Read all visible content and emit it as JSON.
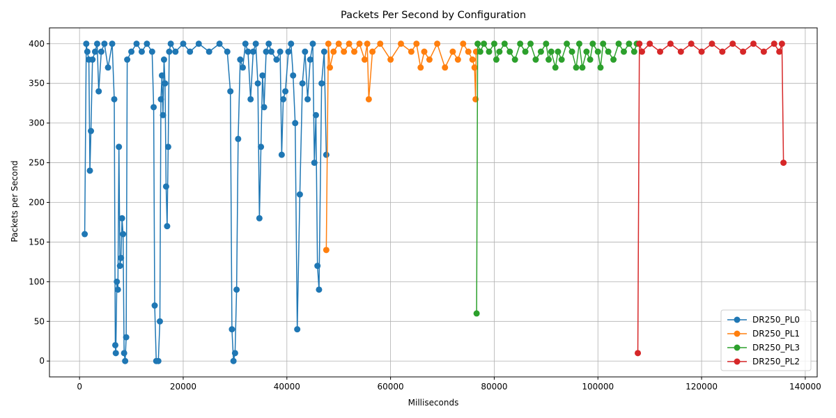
{
  "chart_data": {
    "type": "line",
    "title": "Packets Per Second by Configuration",
    "xlabel": "Milliseconds",
    "ylabel": "Packets per Second",
    "xlim": [
      -5800,
      142300
    ],
    "ylim": [
      -20,
      420
    ],
    "xticks": [
      0,
      20000,
      40000,
      60000,
      80000,
      100000,
      120000,
      140000
    ],
    "yticks": [
      0,
      50,
      100,
      150,
      200,
      250,
      300,
      350,
      400
    ],
    "grid": true,
    "legend_position": "bottom-right",
    "series": [
      {
        "name": "DR250_PL0",
        "color": "#1f77b4",
        "x": [
          1000,
          1300,
          1500,
          1800,
          2000,
          2200,
          2500,
          3000,
          3400,
          3700,
          4200,
          4800,
          5500,
          6300,
          6700,
          6900,
          7000,
          7200,
          7400,
          7600,
          7800,
          8000,
          8200,
          8400,
          8600,
          8800,
          9000,
          9200,
          10000,
          11000,
          12000,
          13000,
          14000,
          14300,
          14500,
          14800,
          15200,
          15500,
          15700,
          15900,
          16100,
          16300,
          16500,
          16700,
          16900,
          17100,
          17300,
          17600,
          18500,
          20000,
          21300,
          23000,
          25000,
          27000,
          28500,
          29100,
          29400,
          29700,
          30000,
          30300,
          30600,
          31000,
          31500,
          32000,
          32500,
          33000,
          33500,
          34000,
          34400,
          34700,
          35000,
          35300,
          35600,
          36000,
          36500,
          37000,
          38000,
          38700,
          39000,
          39300,
          39700,
          40300,
          40800,
          41200,
          41600,
          42000,
          42500,
          43000,
          43500,
          44000,
          44500,
          45000,
          45300,
          45600,
          45900,
          46200,
          46700,
          47200,
          47600
        ],
        "y": [
          160,
          400,
          390,
          380,
          240,
          290,
          380,
          390,
          400,
          340,
          390,
          400,
          370,
          400,
          330,
          20,
          10,
          100,
          90,
          270,
          120,
          130,
          180,
          160,
          10,
          0,
          30,
          380,
          390,
          400,
          390,
          400,
          390,
          320,
          70,
          0,
          0,
          50,
          330,
          360,
          310,
          380,
          350,
          220,
          170,
          270,
          390,
          400,
          390,
          400,
          390,
          400,
          390,
          400,
          390,
          340,
          40,
          0,
          10,
          90,
          280,
          380,
          370,
          400,
          390,
          330,
          390,
          400,
          350,
          180,
          270,
          360,
          320,
          390,
          400,
          390,
          380,
          390,
          260,
          330,
          340,
          390,
          400,
          360,
          300,
          40,
          210,
          350,
          390,
          330,
          380,
          400,
          250,
          310,
          120,
          90,
          350,
          390,
          260
        ]
      },
      {
        "name": "DR250_PL1",
        "color": "#ff7f0e",
        "x": [
          47600,
          48000,
          48300,
          49000,
          50000,
          51000,
          52000,
          53000,
          54000,
          55000,
          55500,
          55800,
          56500,
          58000,
          60000,
          62000,
          64000,
          65000,
          65800,
          66500,
          67500,
          69000,
          70500,
          72000,
          73000,
          74000,
          75000,
          75800,
          76200,
          76400,
          76500
        ],
        "y": [
          140,
          400,
          370,
          390,
          400,
          390,
          400,
          390,
          400,
          380,
          400,
          330,
          390,
          400,
          380,
          400,
          390,
          400,
          370,
          390,
          380,
          400,
          370,
          390,
          380,
          400,
          390,
          380,
          370,
          330,
          390
        ]
      },
      {
        "name": "DR250_PL3",
        "color": "#2ca02c",
        "x": [
          76600,
          76800,
          77300,
          78000,
          79000,
          80000,
          80400,
          81000,
          82000,
          83000,
          84000,
          85000,
          86000,
          87000,
          88000,
          89000,
          90000,
          90500,
          91000,
          91800,
          92300,
          93000,
          94000,
          95000,
          95800,
          96400,
          97000,
          97800,
          98500,
          99000,
          100000,
          100500,
          101000,
          102000,
          103000,
          104000,
          105000,
          106000,
          107000,
          107500
        ],
        "y": [
          60,
          400,
          390,
          400,
          390,
          400,
          380,
          390,
          400,
          390,
          380,
          400,
          390,
          400,
          380,
          390,
          400,
          380,
          390,
          370,
          390,
          380,
          400,
          390,
          370,
          400,
          370,
          390,
          380,
          400,
          390,
          370,
          400,
          390,
          380,
          400,
          390,
          400,
          390,
          400
        ]
      },
      {
        "name": "DR250_PL2",
        "color": "#d62728",
        "x": [
          107700,
          108000,
          108500,
          110000,
          112000,
          114000,
          116000,
          118000,
          120000,
          122000,
          124000,
          126000,
          128000,
          130000,
          132000,
          134000,
          135000,
          135500,
          135800
        ],
        "y": [
          10,
          400,
          390,
          400,
          390,
          400,
          390,
          400,
          390,
          400,
          390,
          400,
          390,
          400,
          390,
          400,
          390,
          400,
          250
        ]
      }
    ]
  }
}
